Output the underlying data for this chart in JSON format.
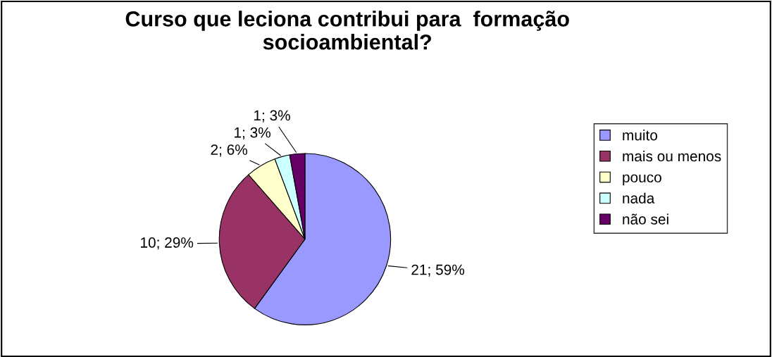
{
  "chart_data": {
    "type": "pie",
    "title": "Curso que leciona contribui para  formação\nsocioambiental?",
    "categories": [
      "muito",
      "mais ou menos",
      "pouco",
      "nada",
      "não sei"
    ],
    "values": [
      21,
      10,
      2,
      1,
      1
    ],
    "colors": [
      "#9999ff",
      "#993366",
      "#ffffcc",
      "#ccffff",
      "#660066"
    ],
    "value_labels": [
      "21; 59%",
      "10; 29%",
      "2; 6%",
      "1; 3%",
      "1; 3%"
    ],
    "legend": "right"
  }
}
